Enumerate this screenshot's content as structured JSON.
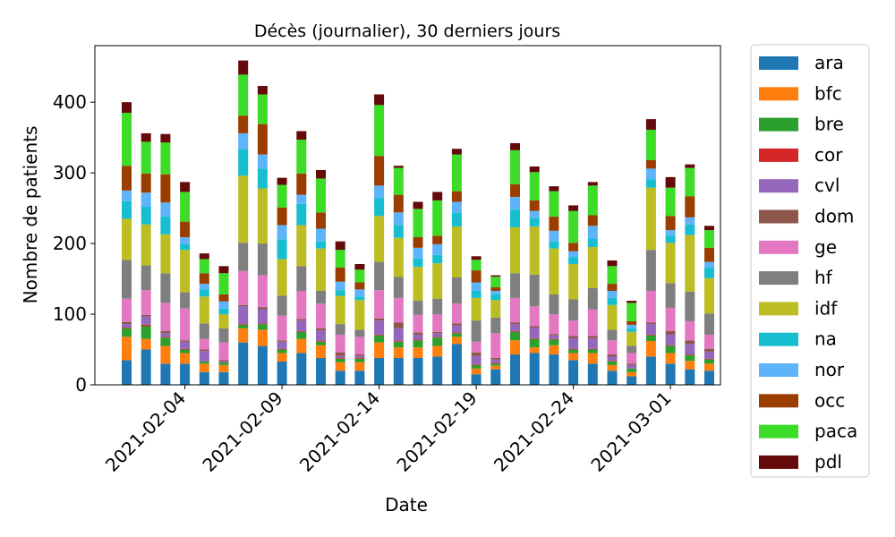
{
  "chart_data": {
    "type": "bar",
    "stacked": true,
    "title": "Décès (journalier), 30 derniers jours",
    "xlabel": "Date",
    "ylabel": "Nombre de patients",
    "ylim": [
      0,
      480
    ],
    "yticks": [
      0,
      100,
      200,
      300,
      400
    ],
    "xtick_labels": [
      "2021-02-04",
      "2021-02-09",
      "2021-02-14",
      "2021-02-19",
      "2021-02-24",
      "2021-03-01"
    ],
    "xtick_positions": [
      3,
      8,
      13,
      18,
      23,
      28
    ],
    "legend_position": "outside-right",
    "grid": false,
    "categories": [
      "2021-02-01",
      "2021-02-02",
      "2021-02-03",
      "2021-02-04",
      "2021-02-05",
      "2021-02-06",
      "2021-02-07",
      "2021-02-08",
      "2021-02-09",
      "2021-02-10",
      "2021-02-11",
      "2021-02-12",
      "2021-02-13",
      "2021-02-14",
      "2021-02-15",
      "2021-02-16",
      "2021-02-17",
      "2021-02-18",
      "2021-02-19",
      "2021-02-20",
      "2021-02-21",
      "2021-02-22",
      "2021-02-23",
      "2021-02-24",
      "2021-02-25",
      "2021-02-26",
      "2021-02-27",
      "2021-02-28",
      "2021-03-01",
      "2021-03-02",
      "2021-03-03"
    ],
    "series": [
      {
        "name": "ara",
        "color": "#1f77b4",
        "values": [
          35,
          50,
          30,
          30,
          18,
          18,
          60,
          55,
          33,
          45,
          38,
          20,
          20,
          38,
          38,
          38,
          40,
          58,
          15,
          22,
          43,
          45,
          43,
          35,
          30,
          20,
          12,
          40,
          30,
          22,
          20
        ]
      },
      {
        "name": "bfc",
        "color": "#ff7f0e",
        "values": [
          33,
          15,
          25,
          15,
          12,
          10,
          20,
          23,
          12,
          20,
          18,
          12,
          12,
          22,
          15,
          15,
          15,
          10,
          8,
          5,
          20,
          8,
          13,
          10,
          15,
          8,
          6,
          22,
          15,
          12,
          10
        ]
      },
      {
        "name": "bre",
        "color": "#2ca02c",
        "values": [
          12,
          18,
          12,
          5,
          3,
          3,
          5,
          8,
          5,
          10,
          5,
          5,
          5,
          10,
          8,
          10,
          12,
          5,
          5,
          3,
          12,
          12,
          8,
          5,
          5,
          5,
          5,
          8,
          10,
          8,
          6
        ]
      },
      {
        "name": "cor",
        "color": "#d62728",
        "values": [
          1,
          2,
          1,
          1,
          0,
          0,
          1,
          1,
          1,
          1,
          1,
          1,
          1,
          1,
          1,
          1,
          1,
          1,
          1,
          1,
          1,
          1,
          1,
          1,
          1,
          1,
          0,
          1,
          1,
          1,
          1
        ]
      },
      {
        "name": "cvl",
        "color": "#9467bd",
        "values": [
          5,
          12,
          5,
          10,
          15,
          2,
          25,
          20,
          10,
          15,
          15,
          3,
          3,
          20,
          18,
          7,
          5,
          10,
          12,
          5,
          10,
          15,
          5,
          15,
          15,
          6,
          5,
          15,
          15,
          15,
          10
        ]
      },
      {
        "name": "dom",
        "color": "#8c564b",
        "values": [
          3,
          2,
          3,
          2,
          2,
          2,
          2,
          3,
          2,
          2,
          3,
          5,
          2,
          3,
          8,
          3,
          2,
          3,
          5,
          2,
          2,
          2,
          2,
          3,
          3,
          3,
          2,
          2,
          5,
          5,
          4
        ]
      },
      {
        "name": "ge",
        "color": "#e377c2",
        "values": [
          33,
          35,
          40,
          45,
          15,
          25,
          48,
          45,
          35,
          40,
          35,
          25,
          25,
          40,
          35,
          25,
          25,
          28,
          15,
          35,
          35,
          28,
          28,
          22,
          38,
          20,
          15,
          45,
          33,
          27,
          20
        ]
      },
      {
        "name": "hf",
        "color": "#7f7f7f",
        "values": [
          55,
          35,
          42,
          23,
          22,
          20,
          40,
          45,
          28,
          35,
          18,
          15,
          10,
          40,
          30,
          20,
          22,
          37,
          30,
          22,
          35,
          45,
          28,
          30,
          30,
          15,
          10,
          58,
          35,
          42,
          30
        ]
      },
      {
        "name": "idf",
        "color": "#bcbd22",
        "values": [
          58,
          58,
          55,
          60,
          38,
          20,
          95,
          78,
          52,
          58,
          60,
          40,
          42,
          65,
          55,
          48,
          50,
          72,
          32,
          25,
          65,
          68,
          65,
          50,
          58,
          35,
          20,
          88,
          57,
          80,
          50
        ]
      },
      {
        "name": "na",
        "color": "#17becf",
        "values": [
          25,
          25,
          25,
          8,
          10,
          8,
          38,
          28,
          28,
          30,
          10,
          8,
          5,
          25,
          18,
          12,
          12,
          20,
          10,
          8,
          25,
          12,
          10,
          10,
          12,
          10,
          5,
          12,
          10,
          15,
          15
        ]
      },
      {
        "name": "nor",
        "color": "#5eb4fb",
        "values": [
          15,
          20,
          20,
          10,
          8,
          10,
          22,
          20,
          20,
          13,
          18,
          12,
          10,
          18,
          18,
          15,
          15,
          15,
          12,
          5,
          18,
          10,
          15,
          8,
          18,
          10,
          5,
          15,
          8,
          10,
          8
        ]
      },
      {
        "name": "occ",
        "color": "#9c3d00",
        "values": [
          35,
          27,
          40,
          22,
          15,
          10,
          25,
          43,
          25,
          30,
          23,
          20,
          10,
          42,
          25,
          15,
          12,
          15,
          17,
          5,
          18,
          15,
          20,
          12,
          15,
          10,
          5,
          12,
          20,
          30,
          20
        ]
      },
      {
        "name": "paca",
        "color": "#3ddc28",
        "values": [
          75,
          45,
          45,
          42,
          20,
          30,
          58,
          42,
          32,
          48,
          48,
          25,
          18,
          72,
          38,
          40,
          50,
          52,
          15,
          15,
          48,
          40,
          36,
          45,
          42,
          25,
          26,
          43,
          40,
          40,
          25
        ]
      },
      {
        "name": "pdl",
        "color": "#650a0a",
        "values": [
          15,
          12,
          12,
          14,
          8,
          10,
          20,
          12,
          10,
          12,
          12,
          12,
          8,
          15,
          3,
          10,
          12,
          8,
          5,
          2,
          10,
          8,
          7,
          8,
          5,
          8,
          3,
          15,
          15,
          5,
          6
        ]
      }
    ]
  }
}
